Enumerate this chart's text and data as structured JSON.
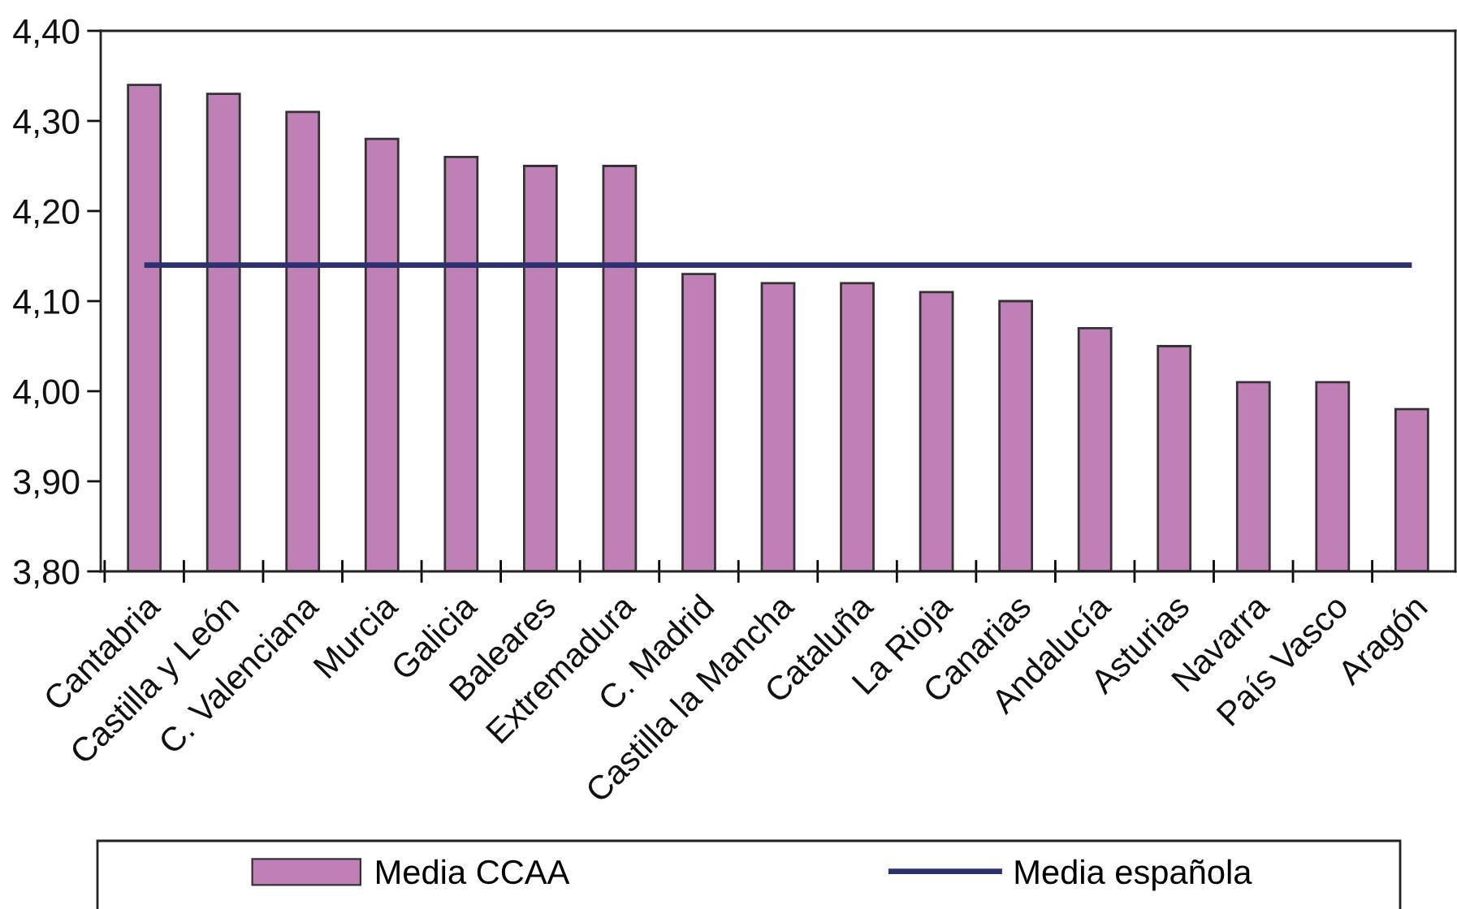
{
  "chart_data": {
    "type": "bar",
    "categories": [
      "Cantabria",
      "Castilla y León",
      "C. Valenciana",
      "Murcia",
      "Galicia",
      "Baleares",
      "Extremadura",
      "C. Madrid",
      "Castilla la Mancha",
      "Cataluña",
      "La Rioja",
      "Canarias",
      "Andalucía",
      "Asturias",
      "Navarra",
      "País Vasco",
      "Aragón"
    ],
    "series": [
      {
        "name": "Media CCAA",
        "color": "#bf80b6",
        "values": [
          4.34,
          4.33,
          4.31,
          4.28,
          4.26,
          4.25,
          4.25,
          4.13,
          4.12,
          4.12,
          4.11,
          4.1,
          4.07,
          4.05,
          4.01,
          4.01,
          3.98
        ]
      },
      {
        "name": "Media española",
        "type": "line",
        "color": "#2e3170",
        "values": [
          4.14,
          4.14,
          4.14,
          4.14,
          4.14,
          4.14,
          4.14,
          4.14,
          4.14,
          4.14,
          4.14,
          4.14,
          4.14,
          4.14,
          4.14,
          4.14,
          4.14
        ]
      }
    ],
    "ylim": [
      3.8,
      4.4
    ],
    "yticks": [
      {
        "value": 3.8,
        "label": "3,80"
      },
      {
        "value": 3.9,
        "label": "3,90"
      },
      {
        "value": 4.0,
        "label": "4,00"
      },
      {
        "value": 4.1,
        "label": "4,10"
      },
      {
        "value": 4.2,
        "label": "4,20"
      },
      {
        "value": 4.3,
        "label": "4,30"
      },
      {
        "value": 4.4,
        "label": "4,40"
      }
    ],
    "grid": false,
    "legend": "bottom",
    "marker": "none",
    "line_style": "solid"
  }
}
